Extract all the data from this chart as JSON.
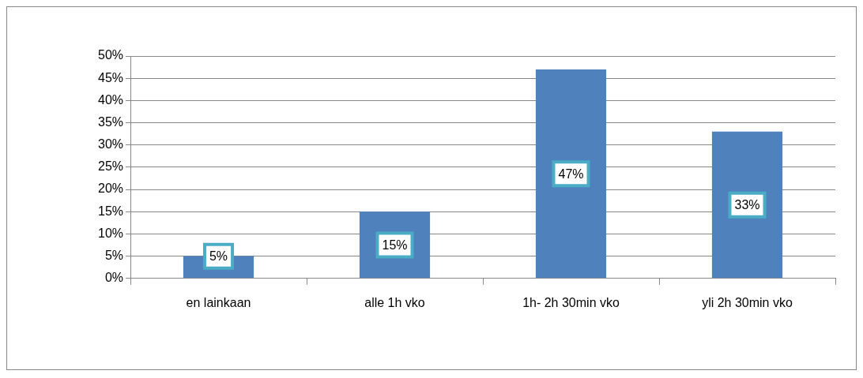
{
  "chart_data": {
    "type": "bar",
    "categories": [
      "en lainkaan",
      "alle 1h vko",
      "1h- 2h 30min vko",
      "yli 2h 30min vko"
    ],
    "values": [
      5,
      15,
      47,
      33
    ],
    "value_labels": [
      "5%",
      "15%",
      "47%",
      "33%"
    ],
    "color": "#4f81bd",
    "grid": "y",
    "legend": false,
    "ylim": [
      0,
      50
    ],
    "yticks": [
      {
        "value": 0,
        "label": "0%"
      },
      {
        "value": 5,
        "label": "5%"
      },
      {
        "value": 10,
        "label": "10%"
      },
      {
        "value": 15,
        "label": "15%"
      },
      {
        "value": 20,
        "label": "20%"
      },
      {
        "value": 25,
        "label": "25%"
      },
      {
        "value": 30,
        "label": "30%"
      },
      {
        "value": 35,
        "label": "35%"
      },
      {
        "value": 40,
        "label": "40%"
      },
      {
        "value": 45,
        "label": "45%"
      },
      {
        "value": 50,
        "label": "50%"
      }
    ]
  }
}
